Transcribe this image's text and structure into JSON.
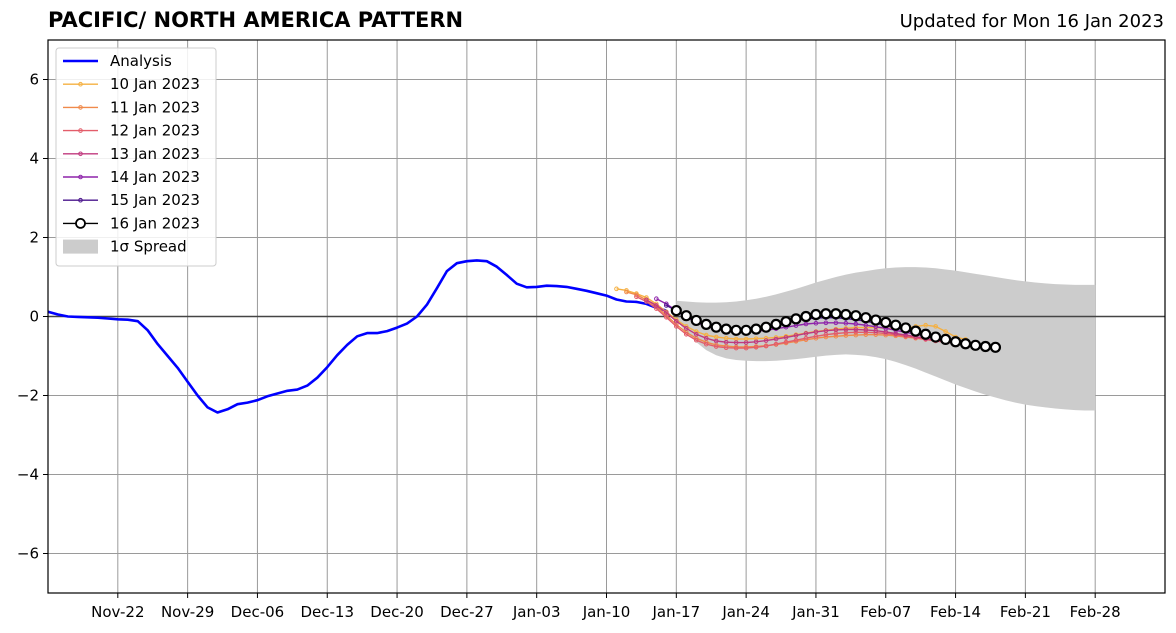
{
  "title": "PACIFIC/ NORTH AMERICA PATTERN",
  "subtitle": "Updated for Mon 16 Jan 2023",
  "chart_data": {
    "type": "line",
    "title": "PACIFIC/ NORTH AMERICA PATTERN",
    "subtitle": "Updated for Mon 16 Jan 2023",
    "xlabel": "",
    "ylabel": "",
    "ylim": [
      -7,
      7
    ],
    "xlim": [
      "2022-11-15",
      "2023-03-07"
    ],
    "yticks": [
      -6,
      -4,
      -2,
      0,
      2,
      4,
      6
    ],
    "ytick_labels": [
      "−6",
      "−4",
      "−2",
      "0",
      "2",
      "4",
      "6"
    ],
    "xticks": [
      "2022-11-22",
      "2022-11-29",
      "2022-12-06",
      "2022-12-13",
      "2022-12-20",
      "2022-12-27",
      "2023-01-03",
      "2023-01-10",
      "2023-01-17",
      "2023-01-24",
      "2023-01-31",
      "2023-02-07",
      "2023-02-14",
      "2023-02-21",
      "2023-02-28"
    ],
    "xtick_labels": [
      "Nov-22",
      "Nov-29",
      "Dec-06",
      "Dec-13",
      "Dec-20",
      "Dec-27",
      "Jan-03",
      "Jan-10",
      "Jan-17",
      "Jan-24",
      "Jan-31",
      "Feb-07",
      "Feb-14",
      "Feb-21",
      "Feb-28"
    ],
    "grid": true,
    "legend_position": "top-left",
    "series": [
      {
        "name": "Analysis",
        "color": "#0000ff",
        "style": "line",
        "x": [
          "2022-11-15",
          "2022-11-16",
          "2022-11-17",
          "2022-11-18",
          "2022-11-19",
          "2022-11-20",
          "2022-11-21",
          "2022-11-22",
          "2022-11-23",
          "2022-11-24",
          "2022-11-25",
          "2022-11-26",
          "2022-11-27",
          "2022-11-28",
          "2022-11-29",
          "2022-11-30",
          "2022-12-01",
          "2022-12-02",
          "2022-12-03",
          "2022-12-04",
          "2022-12-05",
          "2022-12-06",
          "2022-12-07",
          "2022-12-08",
          "2022-12-09",
          "2022-12-10",
          "2022-12-11",
          "2022-12-12",
          "2022-12-13",
          "2022-12-14",
          "2022-12-15",
          "2022-12-16",
          "2022-12-17",
          "2022-12-18",
          "2022-12-19",
          "2022-12-20",
          "2022-12-21",
          "2022-12-22",
          "2022-12-23",
          "2022-12-24",
          "2022-12-25",
          "2022-12-26",
          "2022-12-27",
          "2022-12-28",
          "2022-12-29",
          "2022-12-30",
          "2022-12-31",
          "2023-01-01",
          "2023-01-02",
          "2023-01-03",
          "2023-01-04",
          "2023-01-05",
          "2023-01-06",
          "2023-01-07",
          "2023-01-08",
          "2023-01-09",
          "2023-01-10",
          "2023-01-11",
          "2023-01-12",
          "2023-01-13",
          "2023-01-14",
          "2023-01-15",
          "2023-01-16"
        ],
        "y": [
          0.12,
          0.05,
          0.0,
          -0.01,
          -0.02,
          -0.03,
          -0.05,
          -0.07,
          -0.08,
          -0.12,
          -0.35,
          -0.7,
          -1.0,
          -1.3,
          -1.65,
          -2.0,
          -2.3,
          -2.43,
          -2.35,
          -2.22,
          -2.18,
          -2.12,
          -2.02,
          -1.95,
          -1.88,
          -1.85,
          -1.75,
          -1.55,
          -1.28,
          -0.98,
          -0.72,
          -0.5,
          -0.42,
          -0.42,
          -0.37,
          -0.28,
          -0.18,
          0.0,
          0.3,
          0.72,
          1.15,
          1.35,
          1.4,
          1.42,
          1.4,
          1.26,
          1.05,
          0.83,
          0.74,
          0.75,
          0.78,
          0.77,
          0.75,
          0.7,
          0.65,
          0.59,
          0.53,
          0.43,
          0.38,
          0.37,
          0.32,
          0.22,
          0.15
        ]
      },
      {
        "name": "10 Jan 2023",
        "color": "#f5b041",
        "style": "line-dots",
        "start": "2023-01-11",
        "y": [
          0.7,
          0.66,
          0.58,
          0.48,
          0.32,
          0.12,
          -0.08,
          -0.25,
          -0.38,
          -0.47,
          -0.52,
          -0.55,
          -0.57,
          -0.57,
          -0.56,
          -0.55,
          -0.53,
          -0.5,
          -0.46,
          -0.42,
          -0.38,
          -0.35,
          -0.32,
          -0.3,
          -0.28,
          -0.28,
          -0.28,
          -0.3,
          -0.32,
          -0.3,
          -0.25,
          -0.22,
          -0.25,
          -0.38,
          -0.52,
          -0.58
        ]
      },
      {
        "name": "11 Jan 2023",
        "color": "#f08a4b",
        "style": "line-dots",
        "start": "2023-01-12",
        "y": [
          0.62,
          0.55,
          0.42,
          0.25,
          0.03,
          -0.2,
          -0.4,
          -0.55,
          -0.65,
          -0.72,
          -0.75,
          -0.77,
          -0.77,
          -0.76,
          -0.74,
          -0.71,
          -0.67,
          -0.63,
          -0.59,
          -0.55,
          -0.52,
          -0.5,
          -0.48,
          -0.47,
          -0.46,
          -0.46,
          -0.47,
          -0.49,
          -0.52,
          -0.55,
          -0.58,
          -0.61,
          -0.64,
          -0.66,
          -0.68
        ]
      },
      {
        "name": "12 Jan 2023",
        "color": "#e35d6a",
        "style": "line-dots",
        "start": "2023-01-13",
        "y": [
          0.5,
          0.38,
          0.2,
          -0.02,
          -0.25,
          -0.45,
          -0.6,
          -0.7,
          -0.76,
          -0.79,
          -0.8,
          -0.8,
          -0.78,
          -0.75,
          -0.7,
          -0.65,
          -0.6,
          -0.55,
          -0.5,
          -0.46,
          -0.43,
          -0.41,
          -0.4,
          -0.4,
          -0.41,
          -0.43,
          -0.46,
          -0.5,
          -0.54,
          -0.58,
          -0.62,
          -0.65,
          -0.68,
          -0.7,
          -0.72
        ]
      },
      {
        "name": "13 Jan 2023",
        "color": "#c0397e",
        "style": "line-dots",
        "start": "2023-01-14",
        "y": [
          0.42,
          0.28,
          0.1,
          -0.12,
          -0.3,
          -0.45,
          -0.55,
          -0.62,
          -0.65,
          -0.66,
          -0.66,
          -0.64,
          -0.61,
          -0.57,
          -0.53,
          -0.48,
          -0.43,
          -0.39,
          -0.36,
          -0.34,
          -0.33,
          -0.33,
          -0.34,
          -0.36,
          -0.39,
          -0.43,
          -0.47,
          -0.51,
          -0.56,
          -0.6,
          -0.64,
          -0.68,
          -0.71,
          -0.74,
          -0.76
        ]
      },
      {
        "name": "14 Jan 2023",
        "color": "#8e24aa",
        "style": "line-dots",
        "start": "2023-01-15",
        "y": [
          0.45,
          0.32,
          0.15,
          -0.02,
          -0.15,
          -0.25,
          -0.32,
          -0.36,
          -0.38,
          -0.38,
          -0.37,
          -0.35,
          -0.31,
          -0.27,
          -0.23,
          -0.19,
          -0.17,
          -0.16,
          -0.16,
          -0.17,
          -0.19,
          -0.22,
          -0.26,
          -0.3,
          -0.35,
          -0.4,
          -0.45,
          -0.5,
          -0.55,
          -0.6,
          -0.64,
          -0.68,
          -0.72,
          -0.75,
          -0.78
        ]
      },
      {
        "name": "15 Jan 2023",
        "color": "#4a148c",
        "style": "line-dots",
        "start": "2023-01-16",
        "y": [
          0.28,
          0.15,
          0.0,
          -0.12,
          -0.2,
          -0.26,
          -0.3,
          -0.31,
          -0.3,
          -0.27,
          -0.23,
          -0.18,
          -0.13,
          -0.09,
          -0.06,
          -0.04,
          -0.03,
          -0.03,
          -0.05,
          -0.08,
          -0.12,
          -0.17,
          -0.23,
          -0.29,
          -0.35,
          -0.42,
          -0.48,
          -0.54,
          -0.6,
          -0.65,
          -0.7,
          -0.74,
          -0.77,
          -0.8
        ]
      },
      {
        "name": "16 Jan 2023",
        "color": "#000000",
        "style": "circles",
        "start": "2023-01-17",
        "y": [
          0.15,
          0.02,
          -0.1,
          -0.2,
          -0.27,
          -0.32,
          -0.35,
          -0.35,
          -0.32,
          -0.27,
          -0.2,
          -0.13,
          -0.06,
          0.0,
          0.05,
          0.07,
          0.07,
          0.05,
          0.02,
          -0.03,
          -0.09,
          -0.15,
          -0.22,
          -0.29,
          -0.37,
          -0.45,
          -0.52,
          -0.58,
          -0.64,
          -0.69,
          -0.73,
          -0.76,
          -0.78
        ]
      }
    ],
    "spread": {
      "name": "1σ Spread",
      "color": "#cccccc",
      "start": "2023-01-17",
      "upper": [
        0.4,
        0.38,
        0.36,
        0.35,
        0.35,
        0.36,
        0.38,
        0.41,
        0.45,
        0.5,
        0.56,
        0.63,
        0.7,
        0.78,
        0.86,
        0.93,
        1.0,
        1.06,
        1.11,
        1.15,
        1.19,
        1.22,
        1.24,
        1.25,
        1.25,
        1.24,
        1.22,
        1.19,
        1.16,
        1.12,
        1.08,
        1.04,
        1.0,
        0.96,
        0.92,
        0.89,
        0.86,
        0.84,
        0.82,
        0.81,
        0.8,
        0.8,
        0.8
      ],
      "lower": [
        -0.1,
        -0.4,
        -0.65,
        -0.85,
        -0.98,
        -1.06,
        -1.1,
        -1.12,
        -1.13,
        -1.13,
        -1.12,
        -1.1,
        -1.08,
        -1.05,
        -1.02,
        -0.99,
        -0.97,
        -0.96,
        -0.97,
        -0.99,
        -1.03,
        -1.08,
        -1.15,
        -1.23,
        -1.32,
        -1.42,
        -1.52,
        -1.62,
        -1.72,
        -1.81,
        -1.9,
        -1.98,
        -2.05,
        -2.12,
        -2.18,
        -2.23,
        -2.27,
        -2.3,
        -2.33,
        -2.35,
        -2.37,
        -2.38,
        -2.38
      ]
    }
  }
}
